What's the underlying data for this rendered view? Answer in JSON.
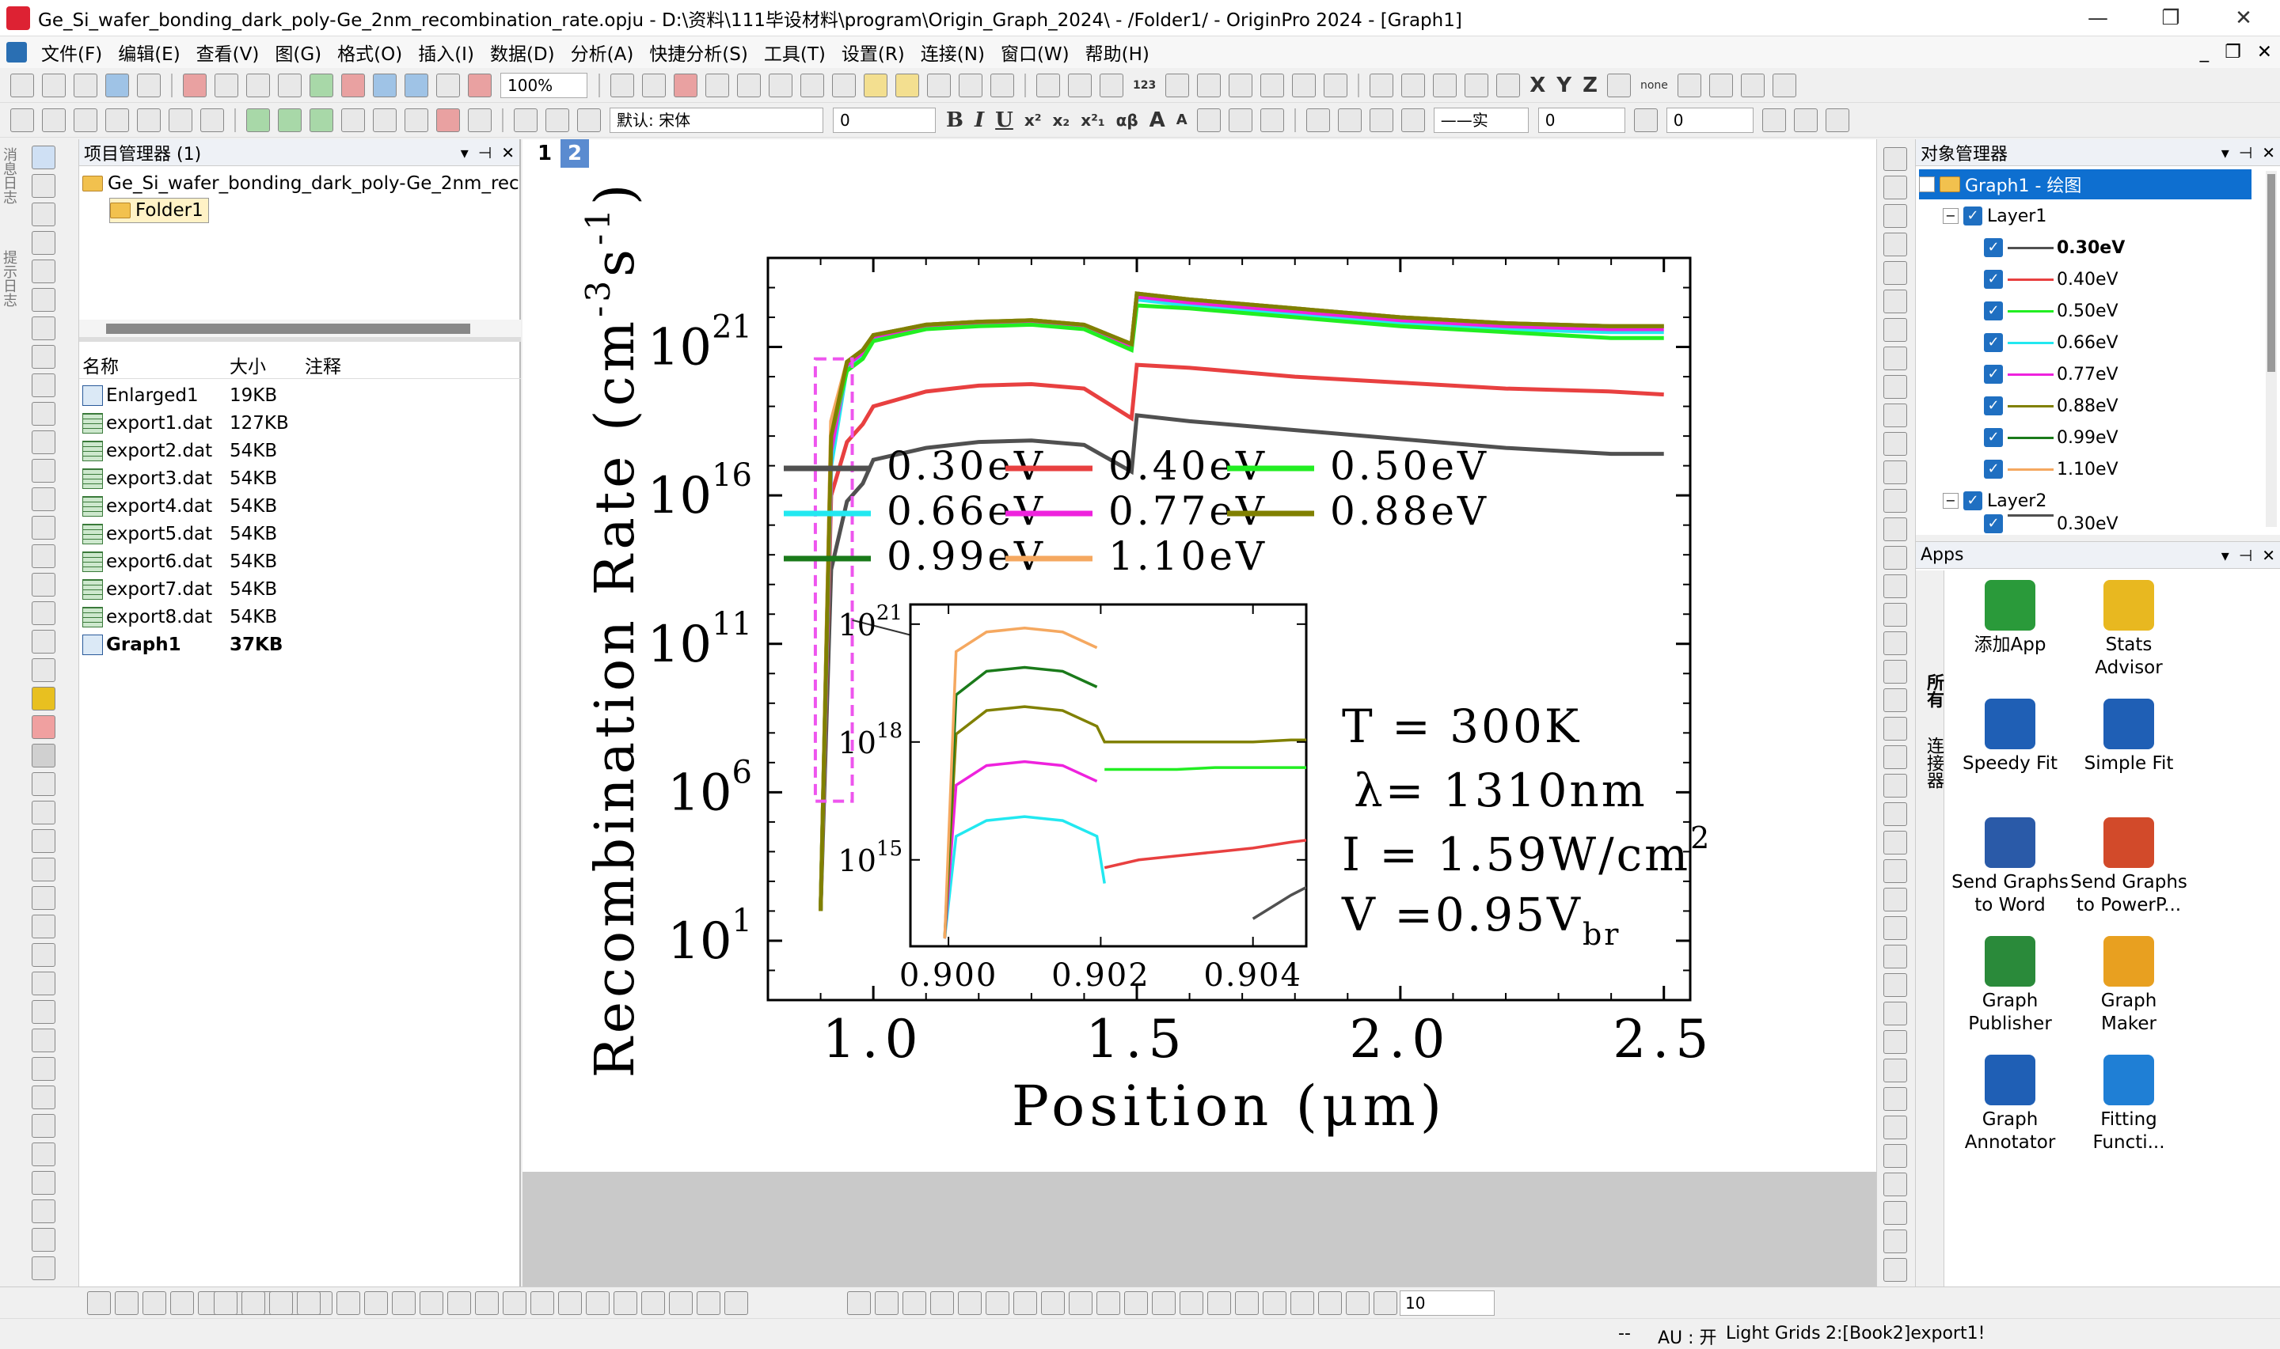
{
  "window": {
    "title": "Ge_Si_wafer_bonding_dark_poly-Ge_2nm_recombination_rate.opju - D:\\资料\\111毕设材料\\program\\Origin_Graph_2024\\ - /Folder1/ - OriginPro 2024 - [Graph1]",
    "minimize": "—",
    "restore": "❐",
    "close": "✕"
  },
  "menu": [
    "文件(F)",
    "编辑(E)",
    "查看(V)",
    "图(G)",
    "格式(O)",
    "插入(I)",
    "数据(D)",
    "分析(A)",
    "快捷分析(S)",
    "工具(T)",
    "设置(R)",
    "连接(N)",
    "窗口(W)",
    "帮助(H)"
  ],
  "menu_right": {
    "minimize": "_",
    "restore": "❐",
    "close": "✕"
  },
  "toolbar": {
    "zoom": "100%",
    "font": "默认: 宋体",
    "font_size": "0",
    "line_style": "——实",
    "line_width": "0",
    "fill_size": "0",
    "bold": "B",
    "italic": "I",
    "underline": "U",
    "superscript": "x²",
    "subscript": "x₂",
    "supsub": "x²₁",
    "greek": "αβ",
    "big_a": "A",
    "small_a": "A",
    "xyz": [
      "X",
      "Y",
      "Z"
    ],
    "none_label": "none",
    "count": "123"
  },
  "project_manager": {
    "title": "项目管理器 (1)",
    "root": "Ge_Si_wafer_bonding_dark_poly-Ge_2nm_rec",
    "folder": "Folder1",
    "columns": [
      "名称",
      "大小",
      "注释"
    ],
    "files": [
      {
        "name": "Enlarged1",
        "size": "19KB",
        "type": "graph"
      },
      {
        "name": "export1.dat",
        "size": "127KB",
        "type": "data"
      },
      {
        "name": "export2.dat",
        "size": "54KB",
        "type": "data"
      },
      {
        "name": "export3.dat",
        "size": "54KB",
        "type": "data"
      },
      {
        "name": "export4.dat",
        "size": "54KB",
        "type": "data"
      },
      {
        "name": "export5.dat",
        "size": "54KB",
        "type": "data"
      },
      {
        "name": "export6.dat",
        "size": "54KB",
        "type": "data"
      },
      {
        "name": "export7.dat",
        "size": "54KB",
        "type": "data"
      },
      {
        "name": "export8.dat",
        "size": "54KB",
        "type": "data"
      },
      {
        "name": "Graph1",
        "size": "37KB",
        "type": "graph",
        "bold": true
      }
    ]
  },
  "left_side_tabs": [
    "消息日志",
    "提示日志"
  ],
  "page_tabs": [
    "1",
    "2"
  ],
  "graph": {
    "ylabel_main": "Recombination Rate (cm",
    "ylabel_sup1": "-3",
    "ylabel_mid": "s",
    "ylabel_sup2": "-1",
    "ylabel_end": ")",
    "xlabel": "Position (μm)",
    "yticks": [
      {
        "base": "10",
        "exp": "1",
        "v": 1
      },
      {
        "base": "10",
        "exp": "6",
        "v": 6
      },
      {
        "base": "10",
        "exp": "11",
        "v": 11
      },
      {
        "base": "10",
        "exp": "16",
        "v": 16
      },
      {
        "base": "10",
        "exp": "21",
        "v": 21
      }
    ],
    "xticks": [
      "1.0",
      "1.5",
      "2.0",
      "2.5"
    ],
    "legend": [
      "0.30eV",
      "0.40eV",
      "0.50eV",
      "0.66eV",
      "0.77eV",
      "0.88eV",
      "0.99eV",
      "1.10eV"
    ],
    "annotations": {
      "T": "T = 300K",
      "lambda": "λ= 1310nm",
      "I": "I = 1.59W/cm",
      "I_sup": "2",
      "V": "V =0.95V",
      "V_sub": "br"
    },
    "inset": {
      "yticks": [
        {
          "base": "10",
          "exp": "21"
        },
        {
          "base": "10",
          "exp": "18"
        },
        {
          "base": "10",
          "exp": "15"
        }
      ],
      "xticks": [
        "0.900",
        "0.902",
        "0.904"
      ]
    }
  },
  "chart_data": {
    "type": "line",
    "xlabel": "Position (μm)",
    "ylabel": "Recombination Rate (cm-3s-1)",
    "yscale": "log",
    "xlim": [
      0.8,
      2.55
    ],
    "ylim_exponent": [
      -1,
      24
    ],
    "colors": {
      "0.30eV": "#505050",
      "0.40eV": "#e84040",
      "0.50eV": "#22ee22",
      "0.66eV": "#22e8f0",
      "0.77eV": "#ee22dd",
      "0.88eV": "#808000",
      "0.99eV": "#1a7a1a",
      "1.10eV": "#f5a860"
    },
    "x": [
      0.9,
      0.92,
      0.95,
      0.98,
      1.0,
      1.1,
      1.2,
      1.3,
      1.4,
      1.49,
      1.5,
      1.6,
      1.8,
      2.0,
      2.2,
      2.4,
      2.5
    ],
    "series": [
      {
        "name": "0.30eV",
        "log10_values": [
          2,
          13.5,
          15.8,
          16.4,
          17.2,
          17.6,
          17.8,
          17.85,
          17.7,
          16.8,
          18.7,
          18.5,
          18.2,
          17.9,
          17.6,
          17.4,
          17.4
        ]
      },
      {
        "name": "0.40eV",
        "log10_values": [
          2,
          16,
          17.8,
          18.4,
          19.0,
          19.5,
          19.7,
          19.75,
          19.6,
          18.6,
          20.4,
          20.3,
          20.0,
          19.8,
          19.6,
          19.5,
          19.4
        ]
      },
      {
        "name": "0.50eV",
        "log10_values": [
          2,
          18,
          20.2,
          20.6,
          21.2,
          21.6,
          21.7,
          21.75,
          21.6,
          20.9,
          22.4,
          22.3,
          22.0,
          21.7,
          21.5,
          21.3,
          21.3
        ]
      },
      {
        "name": "0.66eV",
        "log10_values": [
          2,
          17,
          20.3,
          20.7,
          21.3,
          21.65,
          21.75,
          21.8,
          21.7,
          21.0,
          22.6,
          22.4,
          22.1,
          21.8,
          21.6,
          21.5,
          21.5
        ]
      },
      {
        "name": "0.77eV",
        "log10_values": [
          2,
          17.5,
          20.4,
          20.8,
          21.35,
          21.7,
          21.8,
          21.85,
          21.7,
          21.0,
          22.7,
          22.5,
          22.2,
          21.9,
          21.7,
          21.6,
          21.6
        ]
      },
      {
        "name": "0.88eV",
        "log10_values": [
          2,
          18,
          20.5,
          20.9,
          21.4,
          21.75,
          21.85,
          21.9,
          21.75,
          21.1,
          22.8,
          22.6,
          22.3,
          22.0,
          21.8,
          21.7,
          21.7
        ]
      },
      {
        "name": "0.99eV",
        "log10_values": [
          2,
          18.2,
          20.5,
          20.9,
          21.4,
          21.75,
          21.85,
          21.9,
          21.75,
          21.1,
          22.8,
          22.6,
          22.3,
          22.0,
          21.8,
          21.7,
          21.7
        ]
      },
      {
        "name": "1.10eV",
        "log10_values": [
          2,
          18.5,
          20.5,
          20.9,
          21.4,
          21.75,
          21.85,
          21.9,
          21.75,
          21.1,
          22.8,
          22.6,
          22.3,
          22.0,
          21.8,
          21.7,
          21.7
        ]
      }
    ],
    "inset": {
      "xlim": [
        0.8995,
        0.9047
      ],
      "ylim_exponent": [
        12.8,
        21.5
      ],
      "x": [
        0.89995,
        0.9001,
        0.9005,
        0.901,
        0.9015,
        0.90195,
        0.90205,
        0.9025,
        0.903,
        0.9035,
        0.904,
        0.9045,
        0.9047
      ],
      "series": [
        {
          "name": "0.30eV",
          "log10_values": [
            null,
            null,
            null,
            null,
            null,
            null,
            null,
            null,
            null,
            null,
            13.5,
            14.1,
            14.3
          ]
        },
        {
          "name": "0.40eV",
          "log10_values": [
            null,
            null,
            null,
            null,
            null,
            null,
            14.8,
            15.0,
            15.1,
            15.2,
            15.3,
            15.45,
            15.5
          ]
        },
        {
          "name": "0.50eV",
          "log10_values": [
            null,
            null,
            null,
            null,
            null,
            null,
            17.3,
            17.3,
            17.3,
            17.35,
            17.35,
            17.35,
            17.35
          ]
        },
        {
          "name": "0.66eV",
          "log10_values": [
            13.0,
            15.6,
            16.0,
            16.1,
            16.0,
            15.6,
            14.4,
            null,
            null,
            null,
            null,
            null,
            null
          ]
        },
        {
          "name": "0.77eV",
          "log10_values": [
            13.0,
            16.9,
            17.4,
            17.5,
            17.4,
            17.0,
            null,
            null,
            null,
            null,
            null,
            null,
            null
          ]
        },
        {
          "name": "0.88eV",
          "log10_values": [
            13.0,
            18.2,
            18.8,
            18.9,
            18.8,
            18.4,
            18.0,
            18.0,
            18.0,
            18.0,
            18.0,
            18.05,
            18.05
          ]
        },
        {
          "name": "0.99eV",
          "log10_values": [
            13.0,
            19.2,
            19.8,
            19.9,
            19.8,
            19.4,
            null,
            null,
            null,
            null,
            null,
            null,
            null
          ]
        },
        {
          "name": "1.10eV",
          "log10_values": [
            13.0,
            20.3,
            20.8,
            20.9,
            20.8,
            20.4,
            null,
            null,
            null,
            null,
            null,
            null,
            null
          ]
        }
      ]
    }
  },
  "object_manager": {
    "title": "对象管理器",
    "root": "Graph1 - 绘图",
    "layer1": "Layer1",
    "layer2": "Layer2",
    "layer2_first": "0.30eV",
    "items": [
      "0.30eV",
      "0.40eV",
      "0.50eV",
      "0.66eV",
      "0.77eV",
      "0.88eV",
      "0.99eV",
      "1.10eV"
    ]
  },
  "apps": {
    "title": "Apps",
    "side_tabs": [
      "所有",
      "连接器"
    ],
    "items": [
      {
        "label1": "添加App",
        "label2": "",
        "color": "#2a9a3a"
      },
      {
        "label1": "Stats",
        "label2": "Advisor",
        "color": "#e8b820"
      },
      {
        "label1": "Speedy Fit",
        "label2": "",
        "color": "#1f5fb5"
      },
      {
        "label1": "Simple Fit",
        "label2": "",
        "color": "#1f5fb5"
      },
      {
        "label1": "Send Graphs",
        "label2": "to Word",
        "color": "#2a5aa8"
      },
      {
        "label1": "Send Graphs",
        "label2": "to PowerP...",
        "color": "#d24a2a"
      },
      {
        "label1": "Graph",
        "label2": "Publisher",
        "color": "#2a8a3a"
      },
      {
        "label1": "Graph",
        "label2": "Maker",
        "color": "#e8a020"
      },
      {
        "label1": "Graph",
        "label2": "Annotator",
        "color": "#1f5fb5"
      },
      {
        "label1": "Fitting",
        "label2": "Functi...",
        "color": "#1f7fd5"
      }
    ]
  },
  "status": {
    "font_size_combo": "10",
    "au": "AU : 开",
    "grids": "Light Grids",
    "book": "2:[Book2]export1!",
    "dashes": "--"
  }
}
